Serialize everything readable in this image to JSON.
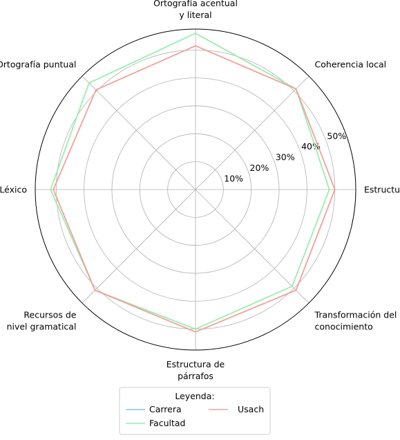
{
  "chart_data": {
    "type": "radar",
    "axes": [
      [
        "Estructura"
      ],
      [
        "Coherencia local"
      ],
      [
        "Ortografía acentual",
        "y literal"
      ],
      [
        "Ortografía puntual"
      ],
      [
        "Léxico"
      ],
      [
        "Recursos de",
        "nivel gramatical"
      ],
      [
        "Estructura de",
        "párrafos"
      ],
      [
        "Transformación del",
        "conocimiento"
      ]
    ],
    "radial_ticks": [
      "10%",
      "20%",
      "30%",
      "40%",
      "50%"
    ],
    "radial_tick_values": [
      10,
      20,
      30,
      40,
      50
    ],
    "rmax": 57.5,
    "series": [
      {
        "name": "Carrera",
        "color": "#87c4ec",
        "values": [],
        "visible_line": false
      },
      {
        "name": "Facultad",
        "color": "#99eeb0",
        "values": [
          48,
          51,
          56,
          54,
          52,
          51,
          50,
          49
        ]
      },
      {
        "name": "Usach",
        "color": "#f4a09a",
        "values": [
          50,
          51,
          51.5,
          50.5,
          51,
          51,
          51,
          51
        ]
      }
    ],
    "legend": {
      "title": "Leyenda:",
      "position": "bottom-center"
    }
  }
}
